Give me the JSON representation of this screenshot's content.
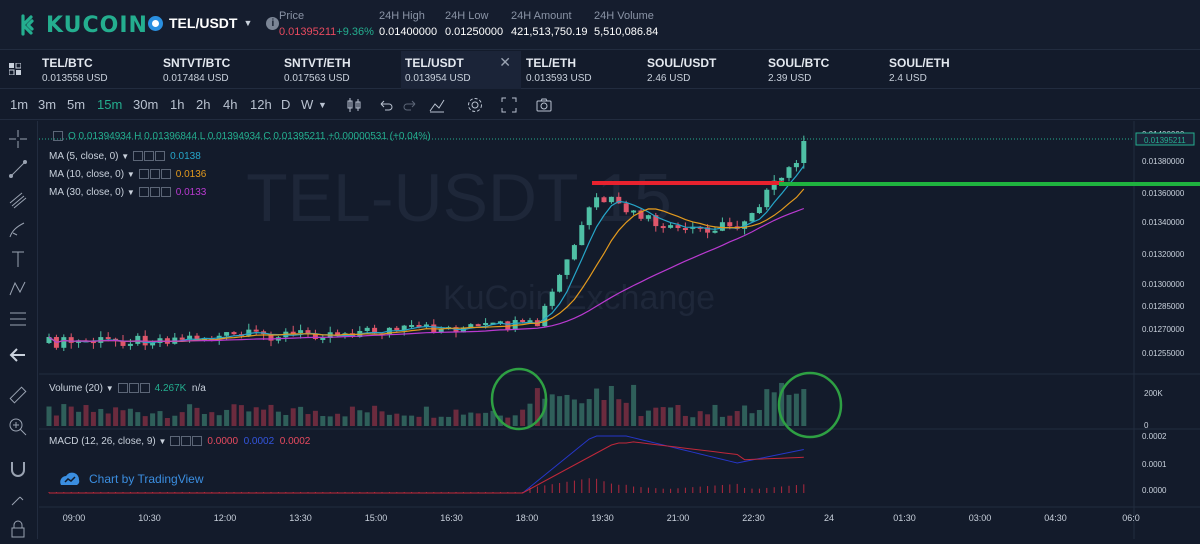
{
  "header": {
    "logo_text": "KUCOIN",
    "pair": "TEL/USDT",
    "stats": [
      {
        "label": "Price",
        "value": "0.01395211",
        "change": "+9.36%"
      },
      {
        "label": "24H High",
        "value": "0.01400000"
      },
      {
        "label": "24H Low",
        "value": "0.01250000"
      },
      {
        "label": "24H Amount",
        "value": "421,513,750.19"
      },
      {
        "label": "24H Volume",
        "value": "5,510,086.84"
      }
    ]
  },
  "tabs": [
    {
      "name": "TEL/BTC",
      "price": "0.013558 USD"
    },
    {
      "name": "SNTVT/BTC",
      "price": "0.017484 USD"
    },
    {
      "name": "SNTVT/ETH",
      "price": "0.017563 USD"
    },
    {
      "name": "TEL/USDT",
      "price": "0.013954 USD",
      "active": true
    },
    {
      "name": "TEL/ETH",
      "price": "0.013593 USD"
    },
    {
      "name": "SOUL/USDT",
      "price": "2.46 USD"
    },
    {
      "name": "SOUL/BTC",
      "price": "2.39 USD"
    },
    {
      "name": "SOUL/ETH",
      "price": "2.4 USD"
    }
  ],
  "timeframes": [
    "1m",
    "3m",
    "5m",
    "15m",
    "30m",
    "1h",
    "2h",
    "4h",
    "12h",
    "D",
    "W"
  ],
  "selected_timeframe": "15m",
  "legend": {
    "ohlc": "O 0.01394934  H 0.01396844  L 0.01394934  C 0.01395211  +0.00000531 (+0.04%)",
    "ma5_label": "MA (5, close, 0)",
    "ma5_value": "0.0138",
    "ma10_label": "MA (10, close, 0)",
    "ma10_value": "0.0136",
    "ma30_label": "MA (30, close, 0)",
    "ma30_value": "0.0133",
    "volume_label": "Volume (20)",
    "volume_value": "4.267K",
    "volume_na": "n/a",
    "macd_label": "MACD (12, 26, close, 9)",
    "macd_v1": "0.0000",
    "macd_v2": "0.0002",
    "macd_v3": "0.0002"
  },
  "watermark": {
    "pair": "TEL-USDT 15",
    "exchange": "KuCoin Exchange"
  },
  "tv_badge": "Chart by TradingView",
  "colors": {
    "up": "#4fc0a5",
    "down": "#e0566b",
    "accent": "#24ae8f",
    "ma5": "#26a6c9",
    "ma10": "#e39a1e",
    "ma30": "#b93ad0",
    "red_line": "#e8222e",
    "green_line": "#1fb33f"
  },
  "chart_data": {
    "type": "candlestick",
    "price_axis": [
      "0.01400000",
      "0.01380000",
      "0.01360000",
      "0.01340000",
      "0.01320000",
      "0.01300000",
      "0.01285000",
      "0.01270000",
      "0.01255000"
    ],
    "current_price_label": "0.01395211",
    "volume_axis": [
      "200K",
      "0"
    ],
    "macd_axis": [
      "0.0002",
      "0.0001",
      "0.0000"
    ],
    "time_axis": [
      "09:00",
      "10:30",
      "12:00",
      "13:30",
      "15:00",
      "16:30",
      "18:00",
      "19:30",
      "21:00",
      "22:30",
      "24",
      "01:30",
      "03:00",
      "04:30",
      "06:0"
    ]
  }
}
